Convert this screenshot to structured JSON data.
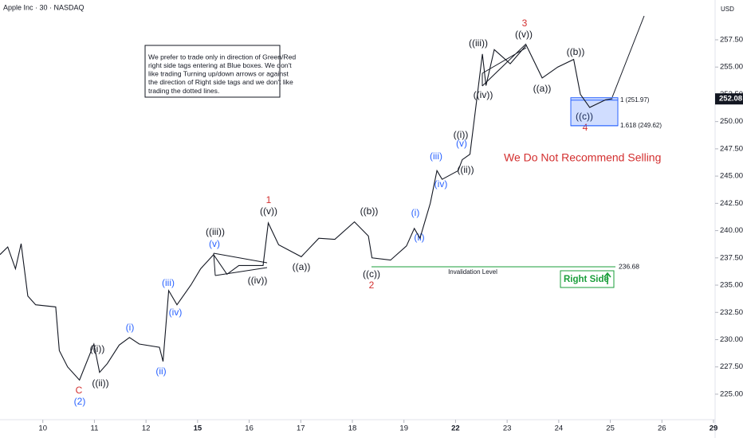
{
  "header": {
    "title": "Apple Inc · 30 · NASDAQ",
    "currency": "USD"
  },
  "note": [
    "We prefer to trade only in direction of Green/Red",
    "right side tags entering at Blue boxes. We don't",
    "like trading Turning up/down arrows or against",
    "the direction of Right side tags and we don't like",
    "trading the dotted lines."
  ],
  "chart_data": {
    "type": "line",
    "x": [
      -0.83,
      -0.68,
      -0.53,
      -0.42,
      -0.29,
      -0.14,
      0.25,
      0.32,
      0.48,
      0.71,
      0.99,
      1.1,
      1.25,
      1.48,
      1.68,
      1.87,
      2.26,
      2.33,
      2.44,
      2.6,
      2.87,
      3.06,
      3.31,
      3.57,
      3.8,
      4.27,
      4.37,
      4.57,
      5.01,
      5.35,
      5.66,
      6.04,
      6.31,
      6.38,
      6.74,
      7.05,
      7.2,
      7.31,
      7.51,
      7.64,
      7.74,
      8.05,
      8.13,
      8.28,
      8.41,
      8.52,
      8.59,
      8.75,
      9.06,
      9.37,
      9.68,
      9.98,
      10.29,
      10.42,
      10.6,
      10.91,
      11.04
    ],
    "series": [
      {
        "name": "AAPL",
        "color": "#131722",
        "values": [
          237.8,
          238.5,
          236.5,
          238.8,
          234,
          233.2,
          233,
          229,
          227.5,
          226.3,
          229.6,
          227,
          227.8,
          229.5,
          230.2,
          229.6,
          229.3,
          228,
          234.5,
          233.2,
          235,
          236.5,
          237.8,
          236,
          236.8,
          236.8,
          240.7,
          238.7,
          237.6,
          239.3,
          239.2,
          240.8,
          239.5,
          237.5,
          237.3,
          238.6,
          240.2,
          239.3,
          242.5,
          245.5,
          244.7,
          245.5,
          246.5,
          247,
          252,
          256.2,
          253.3,
          256.6,
          255.3,
          257,
          254,
          255,
          255.7,
          252.5,
          251.3,
          252,
          252.1
        ]
      }
    ],
    "xlim": [
      -0.83,
      13
    ],
    "xticks": [
      {
        "value": 0,
        "label": "10"
      },
      {
        "value": 1,
        "label": "11"
      },
      {
        "value": 2,
        "label": "12"
      },
      {
        "value": 3,
        "label": "15"
      },
      {
        "value": 4,
        "label": "16"
      },
      {
        "value": 5,
        "label": "17"
      },
      {
        "value": 6,
        "label": "18"
      },
      {
        "value": 7,
        "label": "19"
      },
      {
        "value": 8,
        "label": "22"
      },
      {
        "value": 9,
        "label": "23"
      },
      {
        "value": 10,
        "label": "24"
      },
      {
        "value": 11,
        "label": "25"
      },
      {
        "value": 12,
        "label": "26"
      },
      {
        "value": 13,
        "label": "29"
      }
    ],
    "ylim": [
      222.66,
      261.15
    ],
    "yticks": [
      {
        "value": 225,
        "label": "225.00"
      },
      {
        "value": 227.5,
        "label": "227.50"
      },
      {
        "value": 230,
        "label": "230.00"
      },
      {
        "value": 232.5,
        "label": "232.50"
      },
      {
        "value": 235,
        "label": "235.00"
      },
      {
        "value": 237.5,
        "label": "237.50"
      },
      {
        "value": 240,
        "label": "240.00"
      },
      {
        "value": 242.5,
        "label": "242.50"
      },
      {
        "value": 245,
        "label": "245.00"
      },
      {
        "value": 247.5,
        "label": "247.50"
      },
      {
        "value": 250,
        "label": "250.00"
      },
      {
        "value": 252.5,
        "label": "252.50"
      },
      {
        "value": 255,
        "label": "255.00"
      },
      {
        "value": 257.5,
        "label": "257.50"
      }
    ],
    "last_price": 252.08,
    "levels": [
      {
        "label": "1 (251.97)",
        "value": 251.97
      },
      {
        "label": "1.618 (249.62)",
        "value": 249.62
      }
    ],
    "invalidation": {
      "label": "Invalidation Level",
      "value": 236.68
    },
    "callout": "We Do Not Recommend Selling",
    "tag": "Right Side",
    "annotations": [
      {
        "text": "((i))",
        "color": "#131722"
      },
      {
        "text": "((ii))",
        "color": "#131722"
      },
      {
        "text": "((iii))",
        "color": "#131722"
      },
      {
        "text": "((iv))",
        "color": "#131722"
      },
      {
        "text": "((v))",
        "color": "#131722"
      },
      {
        "text": "((a))",
        "color": "#131722"
      },
      {
        "text": "((b))",
        "color": "#131722"
      },
      {
        "text": "((c))",
        "color": "#131722"
      },
      {
        "text": "((i))",
        "color": "#131722"
      },
      {
        "text": "((ii))",
        "color": "#131722"
      },
      {
        "text": "((iii))",
        "color": "#131722"
      },
      {
        "text": "((iv))",
        "color": "#131722"
      },
      {
        "text": "((v))",
        "color": "#131722"
      },
      {
        "text": "((a))",
        "color": "#131722"
      },
      {
        "text": "((b))",
        "color": "#131722"
      },
      {
        "text": "((c))",
        "color": "#131722"
      },
      {
        "text": "(i)",
        "color": "#2962ff"
      },
      {
        "text": "(ii)",
        "color": "#2962ff"
      },
      {
        "text": "(iii)",
        "color": "#2962ff"
      },
      {
        "text": "(iv)",
        "color": "#2962ff"
      },
      {
        "text": "(v)",
        "color": "#2962ff"
      },
      {
        "text": "(i)",
        "color": "#2962ff"
      },
      {
        "text": "(ii)",
        "color": "#2962ff"
      },
      {
        "text": "(iii)",
        "color": "#2962ff"
      },
      {
        "text": "(iv)",
        "color": "#2962ff"
      },
      {
        "text": "(v)",
        "color": "#2962ff"
      },
      {
        "text": "(2)",
        "color": "#2962ff"
      },
      {
        "text": "C",
        "color": "#d32f2f"
      },
      {
        "text": "1",
        "color": "#d32f2f"
      },
      {
        "text": "2",
        "color": "#d32f2f"
      },
      {
        "text": "3",
        "color": "#d32f2f"
      },
      {
        "text": "4",
        "color": "#d32f2f"
      }
    ]
  }
}
